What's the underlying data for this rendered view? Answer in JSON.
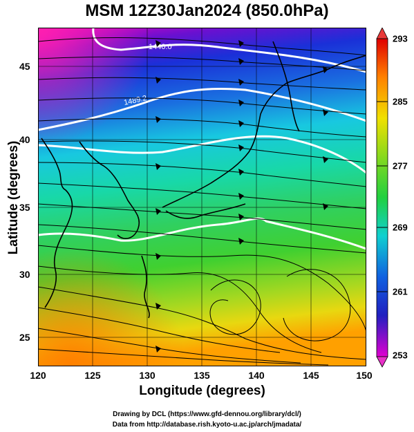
{
  "title": "MSM 12Z30Jan2024 (850.0hPa)",
  "x_axis": {
    "label": "Longitude (degrees)",
    "ticks": [
      "120",
      "125",
      "130",
      "135",
      "140",
      "145",
      "150"
    ]
  },
  "y_axis": {
    "label": "Latitude (degrees)",
    "ticks": [
      "45",
      "40",
      "35",
      "30",
      "25"
    ]
  },
  "colorbar": {
    "ticks": [
      "293",
      "285",
      "277",
      "269",
      "261",
      "253"
    ]
  },
  "contours": [
    "1440.0",
    "1489.2"
  ],
  "footer": {
    "line1": "Drawing by DCL (https://www.gfd-dennou.org/library/dcl/)",
    "line2": "Data from http://database.rish.kyoto-u.ac.jp/arch/jmadata/"
  },
  "colors": {
    "magenta": "#d000c8",
    "blue": "#1e30d8",
    "cyan": "#10d0d8",
    "green": "#30d030",
    "yellow": "#f0e000",
    "orange": "#ff9000",
    "red": "#e00000"
  }
}
